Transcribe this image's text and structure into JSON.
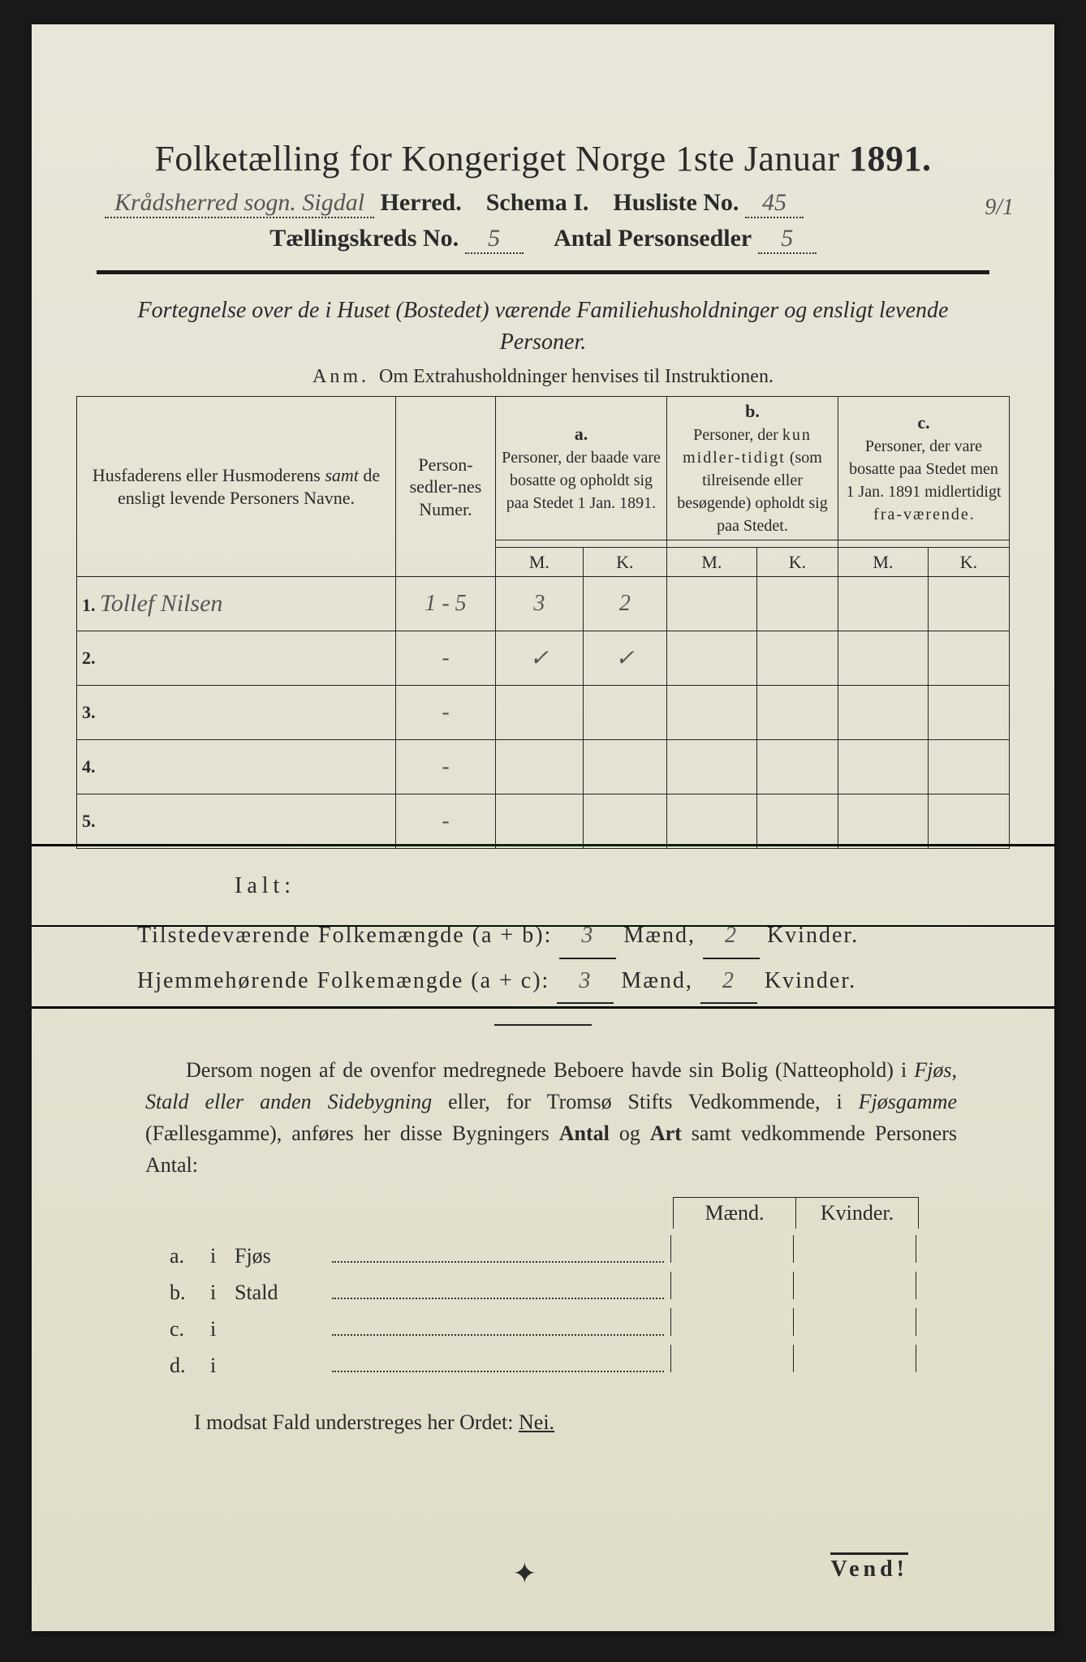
{
  "colors": {
    "paper": "#e4e2d2",
    "ink": "#2a2a2a",
    "handwriting": "#555"
  },
  "header": {
    "title_prefix": "Folketælling for Kongeriget Norge 1ste Januar ",
    "year": "1891.",
    "parish_hand": "Krådsherred sogn. Sigdal",
    "herred": " Herred.",
    "schema": "Schema I.",
    "husliste_label": "Husliste No.",
    "husliste_no": "45",
    "margin": "9/1",
    "tkreds_label": "Tællingskreds No.",
    "tkreds_no": "5",
    "antal_label": "Antal Personsedler",
    "antal_no": "5"
  },
  "subtitle": "Fortegnelse over de i Huset (Bostedet) værende Familiehusholdninger og ensligt levende Personer.",
  "anm_label": "Anm.",
  "anm_text": "Om Extrahusholdninger henvises til Instruktionen.",
  "table": {
    "col1": "Husfaderens eller Husmoderens samt de ensligt levende Personers Navne.",
    "col1_emph": "samt",
    "col2": "Person-sedler-nes Numer.",
    "a_label": "a.",
    "a_text": "Personer, der baade vare bosatte og opholdt sig paa Stedet 1 Jan. 1891.",
    "b_label": "b.",
    "b_text": "Personer, der kun midlertidigt (som tilreisende eller besøgende) opholdt sig paa Stedet.",
    "c_label": "c.",
    "c_text": "Personer, der vare bosatte paa Stedet men 1 Jan. 1891 midlertidigt fraværende.",
    "m": "M.",
    "k": "K.",
    "rows": [
      {
        "n": "1.",
        "name": "Tollef Nilsen",
        "num": "1 - 5",
        "am": "3",
        "ak": "2",
        "bm": "",
        "bk": "",
        "cm": "",
        "ck": ""
      },
      {
        "n": "2.",
        "name": "",
        "num": "-",
        "am": "✓",
        "ak": "✓",
        "bm": "",
        "bk": "",
        "cm": "",
        "ck": ""
      },
      {
        "n": "3.",
        "name": "",
        "num": "-",
        "am": "",
        "ak": "",
        "bm": "",
        "bk": "",
        "cm": "",
        "ck": ""
      },
      {
        "n": "4.",
        "name": "",
        "num": "-",
        "am": "",
        "ak": "",
        "bm": "",
        "bk": "",
        "cm": "",
        "ck": ""
      },
      {
        "n": "5.",
        "name": "",
        "num": "-",
        "am": "",
        "ak": "",
        "bm": "",
        "bk": "",
        "cm": "",
        "ck": ""
      }
    ]
  },
  "ialt": "Ialt:",
  "totals": {
    "line1_label": "Tilstedeværende Folkemængde (a + b):",
    "line2_label": "Hjemmehørende Folkemængde (a + c):",
    "maend": "Mænd,",
    "kvinder": "Kvinder.",
    "v1m": "3",
    "v1k": "2",
    "v2m": "3",
    "v2k": "2"
  },
  "para": "Dersom nogen af de ovenfor medregnede Beboere havde sin Bolig (Natteophold) i Fjøs, Stald eller anden Sidebygning eller, for Tromsø Stifts Vedkommende, i Fjøsgamme (Fællesgamme), anføres her disse Bygningers Antal og Art samt vedkommende Personers Antal:",
  "mk": {
    "m": "Mænd.",
    "k": "Kvinder."
  },
  "buildings": [
    {
      "l": "a.",
      "i": "i",
      "name": "Fjøs"
    },
    {
      "l": "b.",
      "i": "i",
      "name": "Stald"
    },
    {
      "l": "c.",
      "i": "i",
      "name": ""
    },
    {
      "l": "d.",
      "i": "i",
      "name": ""
    }
  ],
  "final": "I modsat Fald understreges her Ordet: ",
  "nei": "Nei.",
  "vend": "Vend!"
}
